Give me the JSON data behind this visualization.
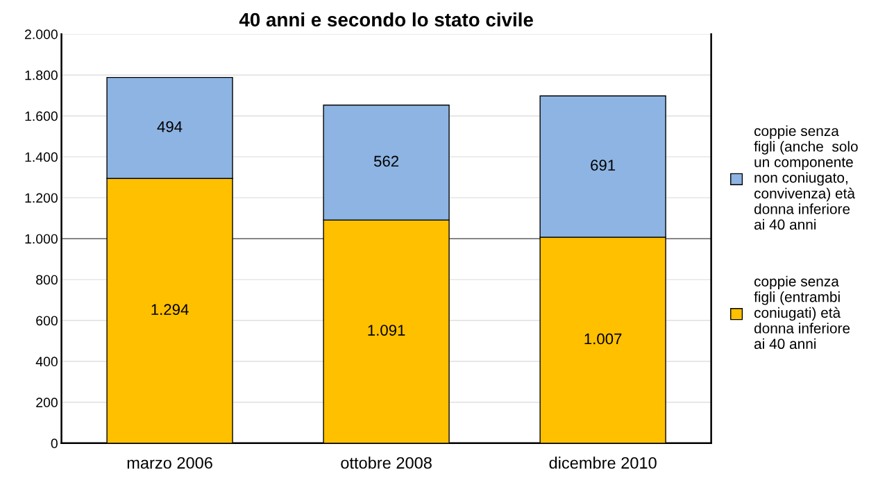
{
  "chart_data": {
    "type": "bar",
    "stacked": true,
    "title": "40 anni e secondo lo stato civile",
    "categories": [
      "marzo 2006",
      "ottobre 2008",
      "dicembre 2010"
    ],
    "series": [
      {
        "name": "coppie senza\nfigli (entrambi\nconiugati) età\ndonna inferiore\nai 40 anni",
        "color": "#ffc000",
        "values": [
          1294,
          1091,
          1007
        ],
        "value_labels": [
          "1.294",
          "1.091",
          "1.007"
        ]
      },
      {
        "name": "coppie senza\nfigli (anche  solo\nun componente\nnon coniugato,\nconvivenza) età\ndonna inferiore\nai 40 anni",
        "color": "#8db4e2",
        "values": [
          494,
          562,
          691
        ],
        "value_labels": [
          "494",
          "562",
          "691"
        ]
      }
    ],
    "ylim": [
      0,
      2000
    ],
    "yticks": [
      {
        "value": 0,
        "label": "0"
      },
      {
        "value": 200,
        "label": "200"
      },
      {
        "value": 400,
        "label": "400"
      },
      {
        "value": 600,
        "label": "600"
      },
      {
        "value": 800,
        "label": "800"
      },
      {
        "value": 1000,
        "label": "1.000"
      },
      {
        "value": 1200,
        "label": "1.200"
      },
      {
        "value": 1400,
        "label": "1.400"
      },
      {
        "value": 1600,
        "label": "1.600"
      },
      {
        "value": 1800,
        "label": "1.800"
      },
      {
        "value": 2000,
        "label": "2.000"
      }
    ],
    "grid": "y",
    "legend": "right",
    "ref_lines": [
      {
        "axis": "y",
        "value": 1000,
        "color": "#868686"
      }
    ]
  }
}
